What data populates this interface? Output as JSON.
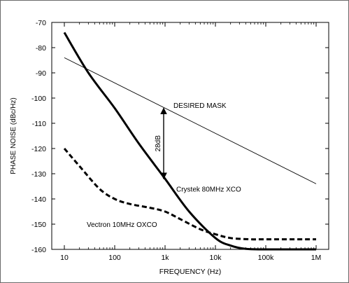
{
  "chart_data": {
    "type": "line",
    "xlabel": "FREQUENCY (Hz)",
    "ylabel": "PHASE NOISE (dBc/Hz)",
    "x_scale": "log",
    "xlim": [
      10,
      1000000
    ],
    "ylim": [
      -160,
      -70
    ],
    "x_ticks": [
      10,
      100,
      1000,
      10000,
      100000,
      1000000
    ],
    "x_tick_labels": [
      "10",
      "100",
      "1k",
      "10k",
      "100k",
      "1M"
    ],
    "y_ticks": [
      -70,
      -80,
      -90,
      -100,
      -110,
      -120,
      -130,
      -140,
      -150,
      -160
    ],
    "y_tick_labels": [
      "-70",
      "-80",
      "-90",
      "-100",
      "-110",
      "-120",
      "-130",
      "-140",
      "-150",
      "-160"
    ],
    "grid": false,
    "series": [
      {
        "name": "DESIRED MASK",
        "style": "thin-solid",
        "x": [
          10,
          1000000
        ],
        "y": [
          -84,
          -134
        ]
      },
      {
        "name": "Crystek 80MHz XCO",
        "style": "thick-solid",
        "x": [
          10,
          30,
          100,
          300,
          1000,
          3000,
          10000,
          20000,
          40000,
          100000,
          1000000
        ],
        "y": [
          -74,
          -90,
          -104,
          -118,
          -132,
          -145,
          -155.5,
          -158.5,
          -159.8,
          -160,
          -160
        ]
      },
      {
        "name": "Vectron 10MHz OXCO",
        "style": "thick-dashed",
        "x": [
          10,
          20,
          50,
          100,
          200,
          500,
          1000,
          2000,
          5000,
          10000,
          20000,
          50000,
          100000,
          1000000
        ],
        "y": [
          -120,
          -127,
          -136,
          -140,
          -142,
          -143.5,
          -145,
          -148,
          -152,
          -154,
          -155.5,
          -156,
          -156,
          -156
        ]
      }
    ],
    "annotations": [
      {
        "text": "DESIRED MASK",
        "x": 1000,
        "y": -103
      },
      {
        "text": "28dB",
        "arrow_x": 1000,
        "from": -104,
        "to": -132
      },
      {
        "text": "Crystek 80MHz XCO",
        "x": 1000,
        "y": -136
      },
      {
        "text": "Vectron 10MHz OXCO",
        "x": 10,
        "y": -150
      }
    ]
  }
}
